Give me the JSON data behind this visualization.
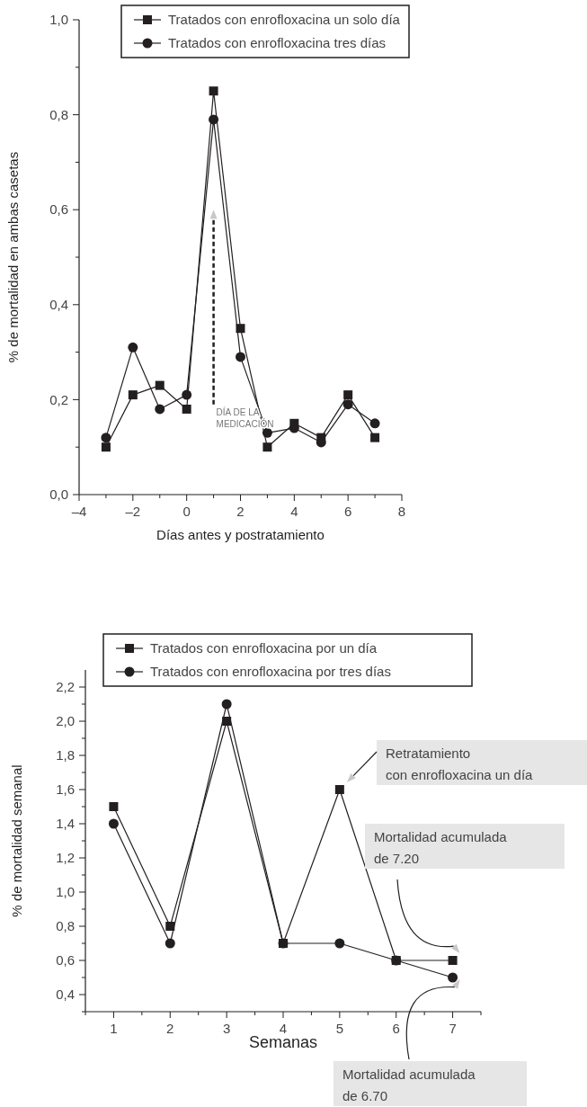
{
  "chart_data": [
    {
      "type": "line",
      "ylabel": "% de mortalidad en ambas casetas",
      "xlabel": "Días antes y postratamiento",
      "x": [
        -3,
        -2,
        -1,
        0,
        1,
        2,
        3,
        4,
        5,
        6,
        7
      ],
      "series": [
        {
          "name": "Tratados con enrofloxacina un solo día",
          "color": "#231f20",
          "marker": "square",
          "values": [
            0.1,
            0.21,
            0.23,
            0.18,
            0.85,
            0.35,
            0.1,
            0.15,
            0.12,
            0.21,
            0.12
          ]
        },
        {
          "name": "Tratados con enrofloxacina tres días",
          "color": "#231f20",
          "marker": "circle",
          "values": [
            0.12,
            0.31,
            0.18,
            0.21,
            0.79,
            0.29,
            0.13,
            0.14,
            0.11,
            0.19,
            0.15
          ]
        }
      ],
      "xlim": [
        -4,
        8
      ],
      "xticks": [
        {
          "value": -4,
          "label": "–4"
        },
        {
          "value": -3,
          "label": null
        },
        {
          "value": -2,
          "label": "–2"
        },
        {
          "value": -1,
          "label": null
        },
        0,
        {
          "value": 1,
          "label": null
        },
        2,
        {
          "value": 3,
          "label": null
        },
        4,
        {
          "value": 5,
          "label": null
        },
        6,
        {
          "value": 7,
          "label": null
        },
        8
      ],
      "ylim": [
        0,
        1
      ],
      "yticks": [
        {
          "value": 0,
          "label": "0,0"
        },
        {
          "value": 0.1,
          "label": null
        },
        {
          "value": 0.2,
          "label": "0,2"
        },
        {
          "value": 0.3,
          "label": null
        },
        {
          "value": 0.4,
          "label": "0,4"
        },
        {
          "value": 0.5,
          "label": null
        },
        {
          "value": 0.6,
          "label": "0,6"
        },
        {
          "value": 0.7,
          "label": null
        },
        {
          "value": 0.8,
          "label": "0,8"
        },
        {
          "value": 0.9,
          "label": null
        },
        {
          "value": 1,
          "label": "1,0"
        }
      ],
      "annotations": [
        "DÍA DE LA\nMEDICACIÓN"
      ],
      "legend": "top right",
      "line_style": "solid",
      "grid": false
    },
    {
      "type": "line",
      "ylabel": "% de mortalidad semanal",
      "xlabel": "Semanas",
      "x": [
        1,
        2,
        3,
        4,
        5,
        6,
        7
      ],
      "series": [
        {
          "name": "Tratados con enrofloxacina por un día",
          "color": "#231f20",
          "marker": "square",
          "values": [
            1.5,
            0.8,
            2.0,
            0.7,
            1.6,
            0.6,
            0.6
          ]
        },
        {
          "name": "Tratados con enrofloxacina por tres días",
          "color": "#231f20",
          "marker": "circle",
          "values": [
            1.4,
            0.7,
            2.1,
            0.7,
            0.7,
            0.6,
            0.5
          ]
        }
      ],
      "xlim": [
        0.5,
        7.5
      ],
      "xticks": [
        {
          "value": 0.5,
          "label": null
        },
        1,
        {
          "value": 1.5,
          "label": null
        },
        2,
        {
          "value": 2.5,
          "label": null
        },
        3,
        {
          "value": 3.5,
          "label": null
        },
        4,
        {
          "value": 4.5,
          "label": null
        },
        5,
        {
          "value": 5.5,
          "label": null
        },
        6,
        {
          "value": 6.5,
          "label": null
        },
        7,
        {
          "value": 7.5,
          "label": null
        }
      ],
      "ylim": [
        0.3,
        2.3
      ],
      "yticks": [
        {
          "value": 0.3,
          "label": null
        },
        {
          "value": 0.4,
          "label": "0,4"
        },
        {
          "value": 0.5,
          "label": null
        },
        {
          "value": 0.6,
          "label": "0,6"
        },
        {
          "value": 0.7,
          "label": null
        },
        {
          "value": 0.8,
          "label": "0,8"
        },
        {
          "value": 0.9,
          "label": null
        },
        {
          "value": 1.0,
          "label": "1,0"
        },
        {
          "value": 1.1,
          "label": null
        },
        {
          "value": 1.2,
          "label": "1,2"
        },
        {
          "value": 1.3,
          "label": null
        },
        {
          "value": 1.4,
          "label": "1,4"
        },
        {
          "value": 1.5,
          "label": null
        },
        {
          "value": 1.6,
          "label": "1,6"
        },
        {
          "value": 1.7,
          "label": null
        },
        {
          "value": 1.8,
          "label": "1,8"
        },
        {
          "value": 1.9,
          "label": null
        },
        {
          "value": 2.0,
          "label": "2,0"
        },
        {
          "value": 2.1,
          "label": null
        },
        {
          "value": 2.2,
          "label": "2,2"
        }
      ],
      "annotations": [
        "Retratamiento\ncon enrofloxacina un día",
        "Mortalidad acumulada\nde 7.20",
        "Mortalidad acumulada\nde 6.70"
      ],
      "legend": "top",
      "line_style": "solid",
      "grid": false
    }
  ]
}
